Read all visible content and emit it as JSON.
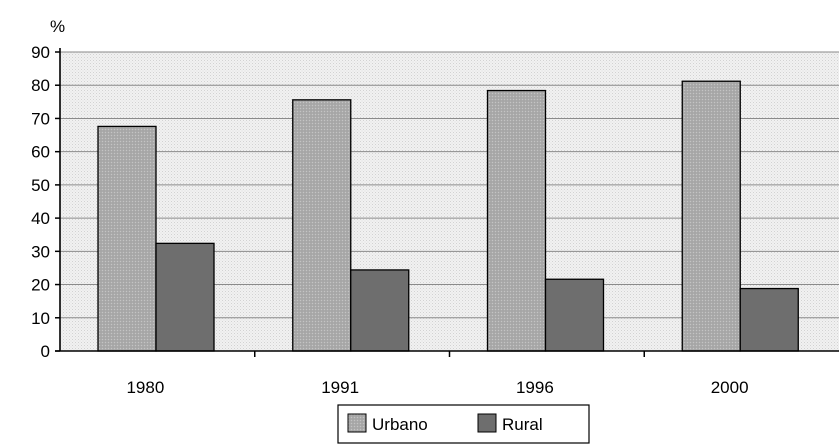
{
  "chart_data": {
    "type": "bar",
    "title": "",
    "xlabel": "",
    "ylabel": "%",
    "categories": [
      "1980",
      "1991",
      "1996",
      "2000"
    ],
    "series": [
      {
        "name": "Urbano",
        "values": [
          67.6,
          75.6,
          78.4,
          81.2
        ],
        "color": "#a9a9a9"
      },
      {
        "name": "Rural",
        "values": [
          32.4,
          24.4,
          21.6,
          18.8
        ],
        "color": "#6e6e6e"
      }
    ],
    "ylim": [
      0,
      90
    ],
    "yticks": [
      0,
      10,
      20,
      30,
      40,
      50,
      60,
      70,
      80,
      90
    ],
    "grid": true,
    "legend_position": "bottom-center"
  }
}
